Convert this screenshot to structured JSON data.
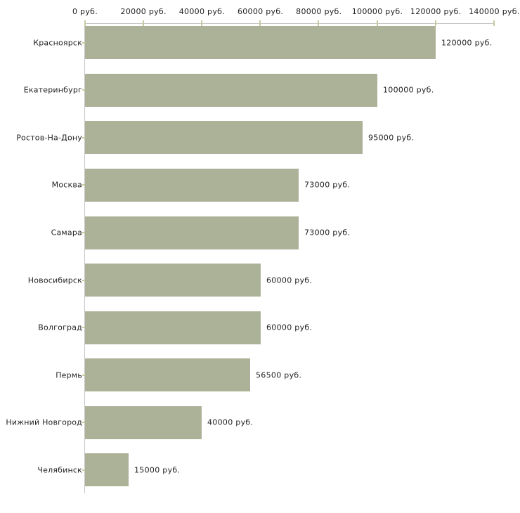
{
  "chart_data": {
    "type": "bar",
    "orientation": "horizontal",
    "title": "",
    "xlabel": "",
    "ylabel": "",
    "unit_suffix": " руб.",
    "categories": [
      "Красноярск",
      "Екатеринбург",
      "Ростов-На-Дону",
      "Москва",
      "Самара",
      "Новосибирск",
      "Волгоград",
      "Пермь",
      "Нижний Новгород",
      "Челябинск"
    ],
    "values": [
      120000,
      100000,
      95000,
      73000,
      73000,
      60000,
      60000,
      56500,
      40000,
      15000
    ],
    "value_labels": [
      "120000 руб.",
      "100000 руб.",
      "95000 руб.",
      "73000 руб.",
      "73000 руб.",
      "60000 руб.",
      "60000 руб.",
      "56500 руб.",
      "40000 руб.",
      "15000 руб."
    ],
    "x_tick_values": [
      0,
      20000,
      40000,
      60000,
      80000,
      100000,
      120000,
      140000
    ],
    "x_tick_labels": [
      "0 руб.",
      "20000 руб.",
      "40000 руб.",
      "60000 руб.",
      "80000 руб.",
      "100000 руб.",
      "120000 руб.",
      "140000 руб."
    ],
    "xlim": [
      0,
      140000
    ],
    "grid": false,
    "legend": "none",
    "axis_position": "top-left",
    "colors": {
      "bar_fill": "#acb298",
      "axis_line": "#c6c6c6",
      "tick_mark": "#c9c99e",
      "text": "#222222",
      "background": "#ffffff"
    }
  }
}
